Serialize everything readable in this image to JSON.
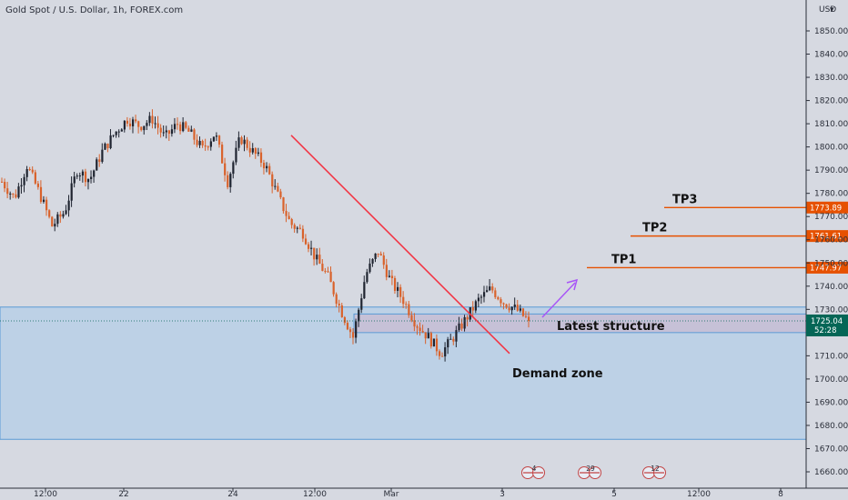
{
  "header": {
    "title": "Gold Spot / U.S. Dollar, 1h, FOREX.com",
    "currency": "USD"
  },
  "colors": {
    "background": "#d6d9e1",
    "up_candle": "#1f2430",
    "down_candle": "#d9622b",
    "zone_fill": "#b9cfe6",
    "zone_border": "#5b9bd5",
    "structure_fill": "#c7bfd5",
    "trendline": "#f23645",
    "tp_line": "#e65100",
    "arrow": "#a855f7",
    "price_badge": "#056656"
  },
  "chart_data": {
    "type": "candlestick",
    "symbol": "Gold Spot / U.S. Dollar",
    "timeframe": "1h",
    "source": "FOREX.com",
    "ylim": [
      1654,
      1862
    ],
    "y_ticks": [
      1660,
      1670,
      1680,
      1690,
      1700,
      1710,
      1720,
      1730,
      1740,
      1750,
      1760,
      1770,
      1780,
      1790,
      1800,
      1810,
      1820,
      1830,
      1840,
      1850
    ],
    "x_ticks": [
      "12:00",
      "22",
      "24",
      "12:00",
      "Mar",
      "3",
      "5",
      "12:00",
      "8"
    ],
    "price_path": [
      1785,
      1778,
      1792,
      1780,
      1766,
      1772,
      1790,
      1786,
      1798,
      1806,
      1812,
      1809,
      1812,
      1804,
      1810,
      1806,
      1799,
      1806,
      1785,
      1804,
      1798,
      1792,
      1779,
      1767,
      1763,
      1752,
      1744,
      1730,
      1718,
      1745,
      1755,
      1742,
      1734,
      1724,
      1718,
      1711,
      1718,
      1726,
      1734,
      1739,
      1733,
      1730,
      1725
    ],
    "last_price": "1725.04",
    "countdown": "52:28",
    "zones": [
      {
        "label": "Demand zone",
        "from": 1674,
        "to": 1731
      },
      {
        "label": "Latest structure",
        "from": 1720,
        "to": 1728
      }
    ],
    "trendline": {
      "from_price": 1805,
      "to_price": 1711
    },
    "targets": [
      {
        "label": "TP1",
        "price": 1747.97,
        "price_label": "1747.97"
      },
      {
        "label": "TP2",
        "price": 1761.61,
        "price_label": "1761.61"
      },
      {
        "label": "TP3",
        "price": 1773.89,
        "price_label": "1773.89"
      }
    ],
    "annotations": {
      "demand_zone": "Demand zone",
      "latest_structure": "Latest structure"
    },
    "event_badges": [
      "4",
      "29",
      "12"
    ],
    "grid": false
  }
}
